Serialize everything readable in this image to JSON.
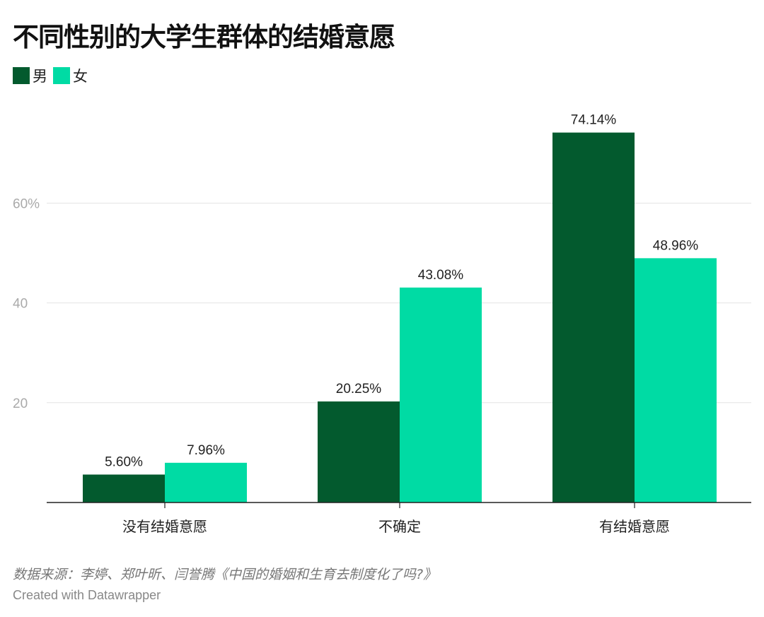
{
  "title": "不同性别的大学生群体的结婚意愿",
  "legend": [
    {
      "label": "男",
      "color": "#035a2e"
    },
    {
      "label": "女",
      "color": "#00dba4"
    }
  ],
  "chart_data": {
    "type": "bar",
    "title": "不同性别的大学生群体的结婚意愿",
    "categories": [
      "没有结婚意愿",
      "不确定",
      "有结婚意愿"
    ],
    "series": [
      {
        "name": "男",
        "values": [
          5.6,
          20.25,
          74.14
        ],
        "labels": [
          "5.60%",
          "20.25%",
          "74.14%"
        ],
        "color": "#035a2e"
      },
      {
        "name": "女",
        "values": [
          7.96,
          43.08,
          48.96
        ],
        "labels": [
          "7.96%",
          "43.08%",
          "48.96%"
        ],
        "color": "#00dba4"
      }
    ],
    "yticks": [
      {
        "value": 20,
        "label": "20"
      },
      {
        "value": 40,
        "label": "40"
      },
      {
        "value": 60,
        "label": "60%"
      }
    ],
    "ylim": [
      0,
      80
    ],
    "xlabel": "",
    "ylabel": "",
    "grid": true
  },
  "source": "数据来源：李婷、郑叶昕、闫誉腾《中国的婚姻和生育去制度化了吗?》",
  "credit": "Created with Datawrapper"
}
